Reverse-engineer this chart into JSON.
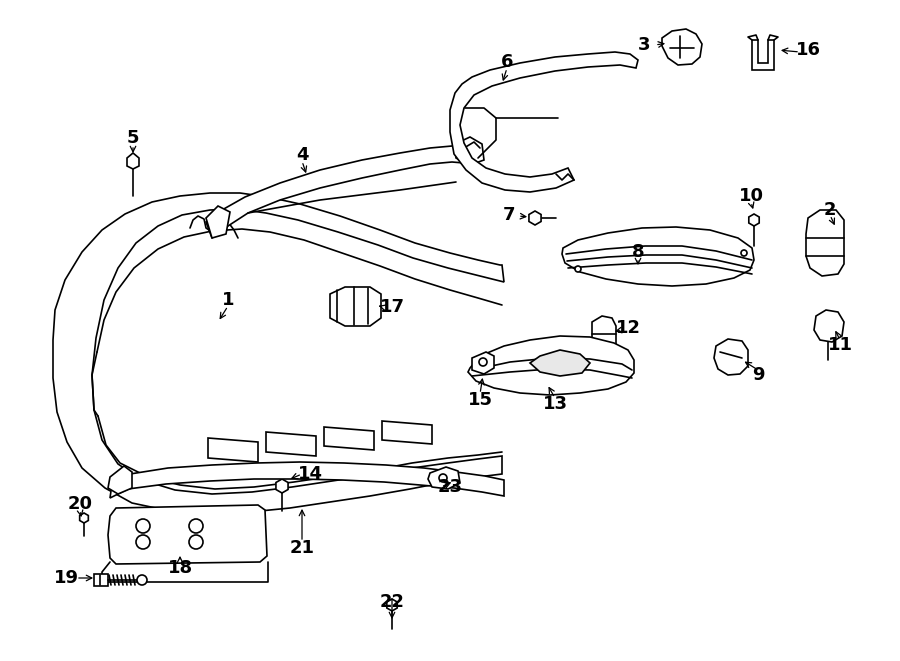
{
  "bg_color": "#ffffff",
  "lc": "#000000",
  "lw": 1.2,
  "fig_w": 9.0,
  "fig_h": 6.61,
  "dpi": 100,
  "fs": 13,
  "fw": "bold"
}
